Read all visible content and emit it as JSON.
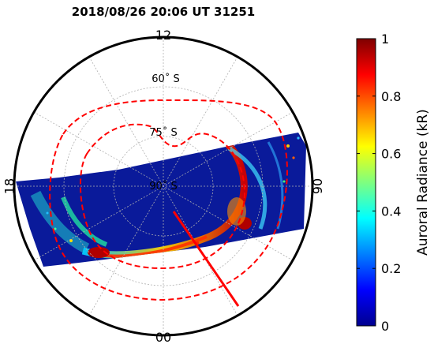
{
  "title": "2018/08/26 20:06 UT  31251",
  "hour_labels": {
    "top": "12",
    "right": "06",
    "bottom": "00",
    "left": "18"
  },
  "latitude_labels": {
    "lat60": "60˚ S",
    "lat75": "75˚ S",
    "pole": "90˚ S"
  },
  "colorbar": {
    "label": "Auroral Radiance (kR)",
    "ticks": [
      "0",
      "0.2",
      "0.4",
      "0.6",
      "0.8",
      "1"
    ],
    "range": [
      0,
      1
    ],
    "colormap": "jet"
  },
  "colors": {
    "oval_boundary": "#ff0000",
    "swath_background": "#0a1a9a",
    "ring": "#000000",
    "grid": "#b0b0b0"
  }
}
